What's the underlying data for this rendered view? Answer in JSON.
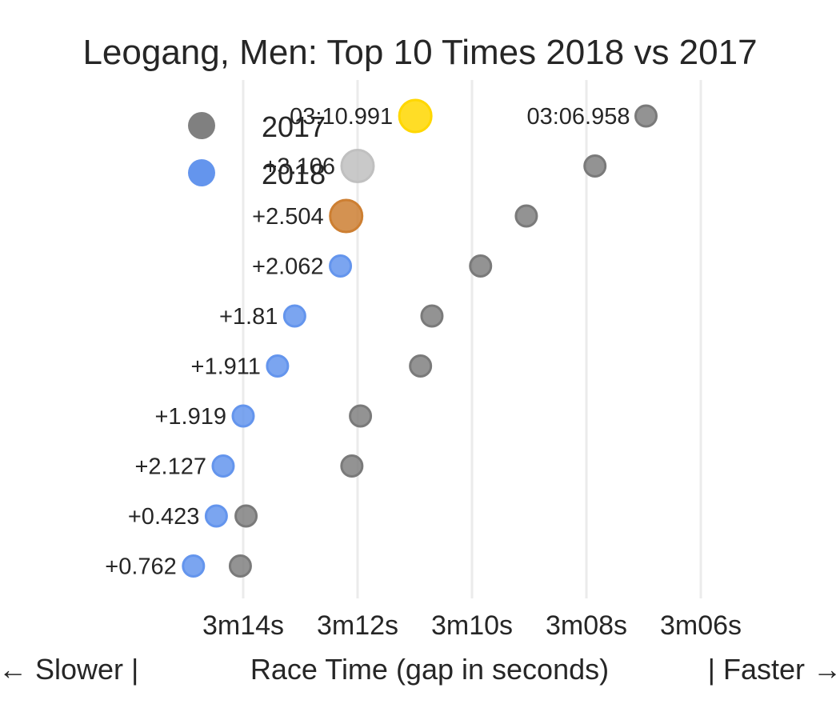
{
  "chart_data": {
    "type": "scatter",
    "title": "Leogang, Men: Top 10 Times 2018 vs 2017",
    "xlabel": "Race Time (gap in seconds)",
    "xlabel_left": "← Slower |",
    "xlabel_right": "| Faster →",
    "x_axis_reversed": true,
    "xlim_seconds": [
      194.1,
      185.6
    ],
    "grid": "vertical",
    "x_ticks": [
      {
        "value": 194,
        "label": "3m14s"
      },
      {
        "value": 192,
        "label": "3m12s"
      },
      {
        "value": 190,
        "label": "3m10s"
      },
      {
        "value": 188,
        "label": "3m08s"
      },
      {
        "value": 186,
        "label": "3m06s"
      }
    ],
    "legend": {
      "placement": "top-left",
      "entries": [
        {
          "label": "2017",
          "color": "#808080"
        },
        {
          "label": "2018",
          "color": "#6495ed"
        }
      ]
    },
    "podium_colors": [
      "#ffd700",
      "#c0c0c0",
      "#cd7f32"
    ],
    "rank_count": 10,
    "series": [
      {
        "name": "2017",
        "color": "#808080",
        "time_seconds": [
          186.958,
          187.85,
          189.05,
          189.85,
          190.7,
          190.9,
          191.95,
          192.1,
          193.95,
          194.05
        ],
        "labels": [
          "03:06.958",
          "",
          "",
          "",
          "",
          "",
          "",
          "",
          "",
          ""
        ]
      },
      {
        "name": "2018",
        "color": "#6495ed",
        "time_seconds": [
          190.991,
          194.097,
          193.495,
          193.053,
          192.801,
          192.902,
          192.91,
          193.118,
          191.414,
          191.753
        ],
        "plot_x_seconds": [
          190.991,
          192.0,
          192.2,
          192.3,
          193.1,
          193.4,
          194.0,
          194.35,
          194.47,
          194.87
        ],
        "labels": [
          "03:10.991",
          "+3.106",
          "+2.504",
          "+2.062",
          "+1.81",
          "+1.911",
          "+1.919",
          "+2.127",
          "+0.423",
          "+0.762"
        ]
      }
    ]
  }
}
